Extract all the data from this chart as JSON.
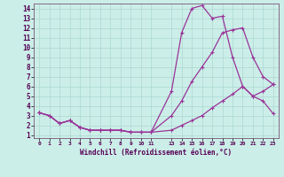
{
  "xlabel": "Windchill (Refroidissement éolien,°C)",
  "bg_color": "#cceee8",
  "grid_color": "#aad8d0",
  "line_color": "#993399",
  "xlim": [
    -0.5,
    23.5
  ],
  "ylim": [
    0.7,
    14.5
  ],
  "xticks": [
    0,
    1,
    2,
    3,
    4,
    5,
    6,
    7,
    8,
    9,
    10,
    11,
    13,
    14,
    15,
    16,
    17,
    18,
    19,
    20,
    21,
    22,
    23
  ],
  "yticks": [
    1,
    2,
    3,
    4,
    5,
    6,
    7,
    8,
    9,
    10,
    11,
    12,
    13,
    14
  ],
  "curve1_x": [
    0,
    1,
    2,
    3,
    4,
    5,
    6,
    7,
    8,
    9,
    10,
    11,
    13,
    14,
    15,
    16,
    17,
    18,
    19,
    20,
    21,
    22,
    23
  ],
  "curve1_y": [
    3.3,
    3.0,
    2.2,
    2.5,
    1.8,
    1.5,
    1.5,
    1.5,
    1.5,
    1.3,
    1.3,
    1.3,
    5.5,
    11.5,
    14.0,
    14.3,
    13.0,
    13.2,
    9.0,
    6.0,
    5.0,
    4.5,
    3.2
  ],
  "curve2_x": [
    0,
    1,
    2,
    3,
    4,
    5,
    6,
    7,
    8,
    9,
    10,
    11,
    13,
    14,
    15,
    16,
    17,
    18,
    19,
    20,
    21,
    22,
    23
  ],
  "curve2_y": [
    3.3,
    3.0,
    2.2,
    2.5,
    1.8,
    1.5,
    1.5,
    1.5,
    1.5,
    1.3,
    1.3,
    1.3,
    3.0,
    4.5,
    6.5,
    8.0,
    9.5,
    11.5,
    11.8,
    12.0,
    9.0,
    7.0,
    6.2
  ],
  "curve3_x": [
    0,
    1,
    2,
    3,
    4,
    5,
    6,
    7,
    8,
    9,
    10,
    11,
    13,
    14,
    15,
    16,
    17,
    18,
    19,
    20,
    21,
    22,
    23
  ],
  "curve3_y": [
    3.3,
    3.0,
    2.2,
    2.5,
    1.8,
    1.5,
    1.5,
    1.5,
    1.5,
    1.3,
    1.3,
    1.3,
    1.5,
    2.0,
    2.5,
    3.0,
    3.8,
    4.5,
    5.2,
    6.0,
    5.0,
    5.5,
    6.2
  ]
}
